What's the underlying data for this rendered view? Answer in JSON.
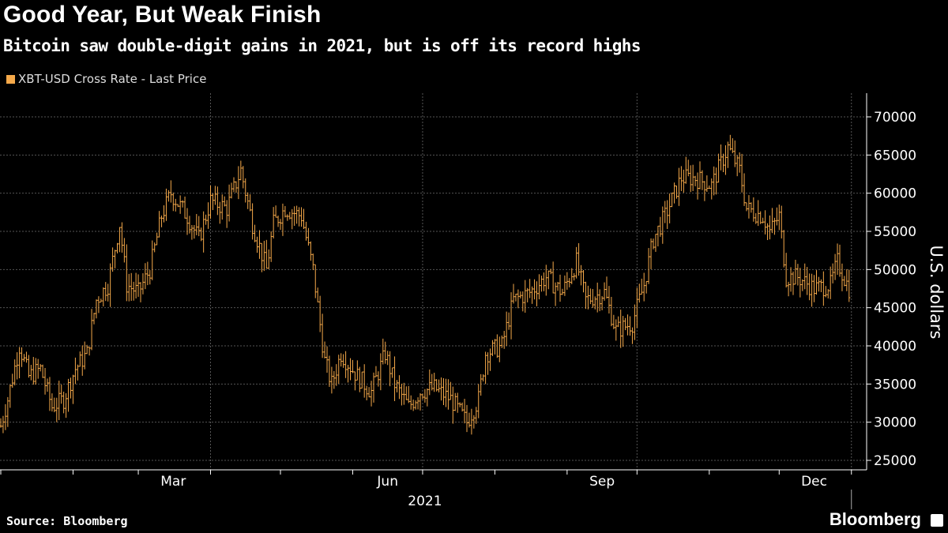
{
  "title": "Good Year, But Weak Finish",
  "subtitle": "Bitcoin saw double-digit gains in 2021, but is off its record highs",
  "source": "Source: Bloomberg",
  "logo": "Bloomberg",
  "chart_data": {
    "type": "ohlc-bar",
    "series_name": "XBT-USD Cross Rate - Last Price",
    "color": "#f5a94a",
    "xlabel": "2021",
    "ylabel": "U.S. dollars",
    "ylim": [
      25000,
      72000
    ],
    "yticks": [
      25000,
      30000,
      35000,
      40000,
      45000,
      50000,
      55000,
      60000,
      65000,
      70000
    ],
    "xtick_labels": [
      "Mar",
      "Jun",
      "Sep",
      "Dec"
    ],
    "xtick_label_days": [
      74,
      166,
      258,
      349
    ],
    "grid_days": [
      90,
      181,
      273,
      365
    ],
    "note": "approximate closes, day-of-year anchors",
    "points": [
      [
        0,
        29500
      ],
      [
        3,
        33000
      ],
      [
        8,
        40000
      ],
      [
        12,
        36000
      ],
      [
        17,
        37000
      ],
      [
        22,
        32000
      ],
      [
        27,
        33000
      ],
      [
        32,
        37000
      ],
      [
        37,
        39000
      ],
      [
        41,
        46000
      ],
      [
        46,
        48000
      ],
      [
        51,
        56000
      ],
      [
        54,
        48000
      ],
      [
        59,
        47000
      ],
      [
        64,
        50000
      ],
      [
        69,
        57000
      ],
      [
        73,
        60000
      ],
      [
        80,
        57000
      ],
      [
        85,
        54000
      ],
      [
        90,
        59000
      ],
      [
        97,
        58000
      ],
      [
        103,
        63000
      ],
      [
        108,
        56000
      ],
      [
        114,
        50000
      ],
      [
        117,
        56000
      ],
      [
        122,
        58000
      ],
      [
        129,
        57000
      ],
      [
        134,
        50000
      ],
      [
        139,
        38000
      ],
      [
        142,
        35000
      ],
      [
        146,
        39000
      ],
      [
        153,
        36000
      ],
      [
        159,
        34000
      ],
      [
        165,
        39000
      ],
      [
        169,
        35000
      ],
      [
        175,
        32000
      ],
      [
        180,
        34000
      ],
      [
        186,
        34500
      ],
      [
        193,
        33000
      ],
      [
        200,
        30000
      ],
      [
        205,
        33000
      ],
      [
        208,
        39000
      ],
      [
        215,
        40000
      ],
      [
        220,
        46000
      ],
      [
        227,
        47000
      ],
      [
        234,
        49000
      ],
      [
        241,
        47000
      ],
      [
        247,
        51000
      ],
      [
        251,
        46000
      ],
      [
        259,
        47000
      ],
      [
        264,
        42000
      ],
      [
        271,
        43000
      ],
      [
        276,
        48000
      ],
      [
        280,
        54000
      ],
      [
        285,
        57000
      ],
      [
        292,
        62000
      ],
      [
        298,
        62000
      ],
      [
        305,
        61000
      ],
      [
        312,
        66000
      ],
      [
        317,
        63000
      ],
      [
        320,
        58000
      ],
      [
        327,
        57000
      ],
      [
        330,
        55000
      ],
      [
        334,
        57000
      ],
      [
        337,
        49000
      ],
      [
        342,
        49000
      ],
      [
        349,
        47500
      ],
      [
        356,
        48000
      ],
      [
        359,
        51000
      ],
      [
        364,
        47500
      ]
    ]
  }
}
